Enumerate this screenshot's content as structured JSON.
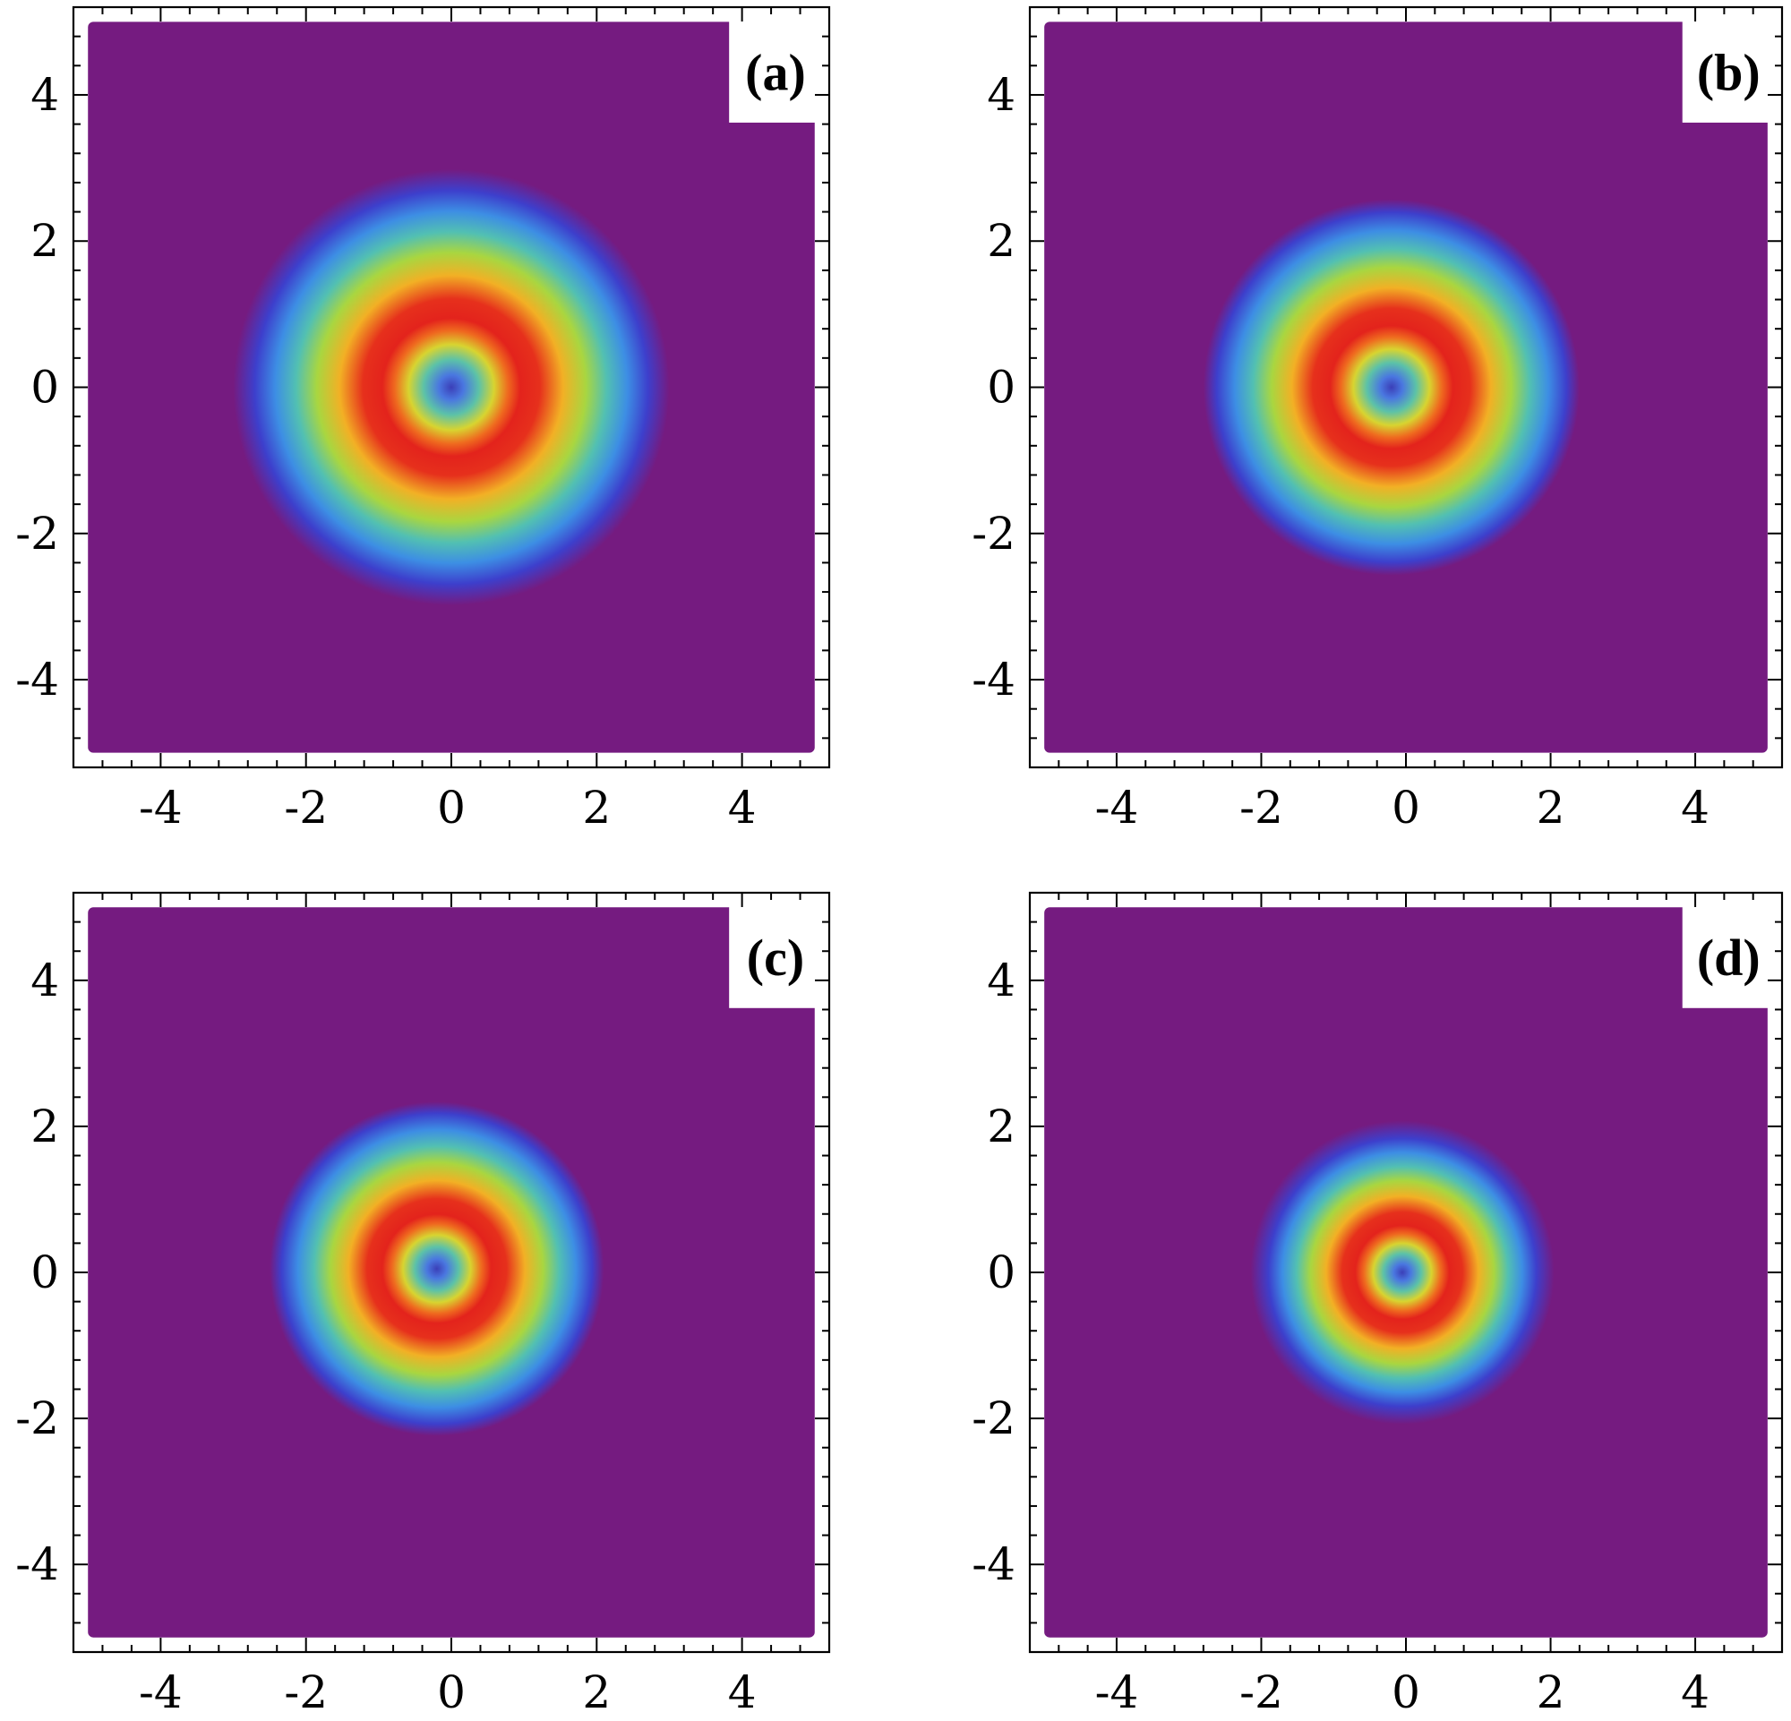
{
  "colors": {
    "background": "#751b80",
    "colormap": [
      "#751b80",
      "#6a2690",
      "#3f3dd0",
      "#3b8ee6",
      "#4ec4b0",
      "#b7d63a",
      "#f3a21f",
      "#e6261f",
      "#e3231c"
    ],
    "frame": "#000000",
    "label_box": "#ffffff"
  },
  "chart_data": [
    {
      "type": "heatmap",
      "panel_label": "(a)",
      "xlim": [
        -5.2,
        5.2
      ],
      "ylim": [
        -5.2,
        5.2
      ],
      "xticks": [
        -4,
        -2,
        0,
        2,
        4
      ],
      "yticks": [
        -4,
        -2,
        0,
        2,
        4
      ],
      "xtick_labels": [
        "-4",
        "-2",
        "0",
        "2",
        "4"
      ],
      "ytick_labels": [
        "-4",
        "-2",
        "0",
        "2",
        "4"
      ],
      "grid": false,
      "ring": {
        "center_x": 0.0,
        "center_y": 0.0,
        "peak_radius": 0.95,
        "width": 0.95,
        "outer_edge_radius": 3.0
      }
    },
    {
      "type": "heatmap",
      "panel_label": "(b)",
      "xlim": [
        -5.2,
        5.2
      ],
      "ylim": [
        -5.2,
        5.2
      ],
      "xticks": [
        -4,
        -2,
        0,
        2,
        4
      ],
      "yticks": [
        -4,
        -2,
        0,
        2,
        4
      ],
      "xtick_labels": [
        "-4",
        "-2",
        "0",
        "2",
        "4"
      ],
      "ytick_labels": [
        "-4",
        "-2",
        "0",
        "2",
        "4"
      ],
      "grid": false,
      "ring": {
        "center_x": -0.2,
        "center_y": 0.0,
        "peak_radius": 0.85,
        "width": 0.8,
        "outer_edge_radius": 2.6
      }
    },
    {
      "type": "heatmap",
      "panel_label": "(c)",
      "xlim": [
        -5.2,
        5.2
      ],
      "ylim": [
        -5.2,
        5.2
      ],
      "xticks": [
        -4,
        -2,
        0,
        2,
        4
      ],
      "yticks": [
        -4,
        -2,
        0,
        2,
        4
      ],
      "xtick_labels": [
        "-4",
        "-2",
        "0",
        "2",
        "4"
      ],
      "ytick_labels": [
        "-4",
        "-2",
        "0",
        "2",
        "4"
      ],
      "grid": false,
      "ring": {
        "center_x": -0.2,
        "center_y": 0.05,
        "peak_radius": 0.75,
        "width": 0.7,
        "outer_edge_radius": 2.3
      }
    },
    {
      "type": "heatmap",
      "panel_label": "(d)",
      "xlim": [
        -5.2,
        5.2
      ],
      "ylim": [
        -5.2,
        5.2
      ],
      "xticks": [
        -4,
        -2,
        0,
        2,
        4
      ],
      "yticks": [
        -4,
        -2,
        0,
        2,
        4
      ],
      "xtick_labels": [
        "-4",
        "-2",
        "0",
        "2",
        "4"
      ],
      "ytick_labels": [
        "-4",
        "-2",
        "0",
        "2",
        "4"
      ],
      "grid": false,
      "ring": {
        "center_x": -0.05,
        "center_y": 0.0,
        "peak_radius": 0.65,
        "width": 0.65,
        "outer_edge_radius": 2.1
      }
    }
  ]
}
